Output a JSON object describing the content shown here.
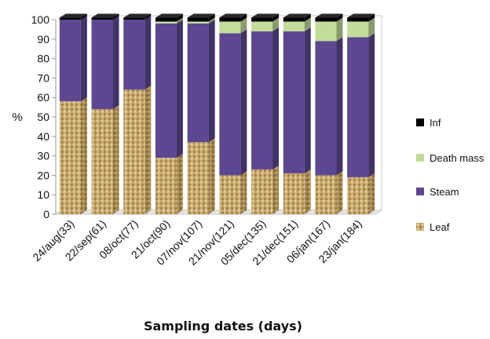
{
  "chart_data": {
    "type": "bar",
    "stacked": true,
    "categories": [
      "24/aug(33)",
      "22/sep(61)",
      "08/oct(77)",
      "21/oct(90)",
      "07/nov(107)",
      "21/nov(121)",
      "05/dec(135)",
      "21/dec(151)",
      "06/jan(167)",
      "23/jan(184)"
    ],
    "series": [
      {
        "name": "Leaf",
        "color": "#c9a96a",
        "values": [
          58,
          54,
          64,
          29,
          37,
          20,
          23,
          21,
          20,
          19
        ]
      },
      {
        "name": "Steam",
        "color": "#5e4791",
        "values": [
          42,
          46,
          36,
          69,
          61,
          73,
          71,
          73,
          69,
          72
        ]
      },
      {
        "name": "Death mass",
        "color": "#c3dc9a",
        "values": [
          0,
          0,
          0,
          1,
          1,
          6,
          5,
          5,
          10,
          8
        ]
      },
      {
        "name": "Inf",
        "color": "#000000",
        "values": [
          1,
          1,
          1,
          2,
          2,
          2,
          2,
          2,
          2,
          2
        ]
      }
    ],
    "legend_order": [
      "Inf",
      "Death mass",
      "Steam",
      "Leaf"
    ],
    "legend_position": "right",
    "xlabel": "Sampling dates (days)",
    "ylabel": "%",
    "ylim": [
      0,
      100
    ],
    "yticks": [
      "0",
      "10",
      "20",
      "30",
      "40",
      "50",
      "60",
      "70",
      "80",
      "90",
      "100"
    ],
    "grid": false,
    "style": "3d"
  }
}
